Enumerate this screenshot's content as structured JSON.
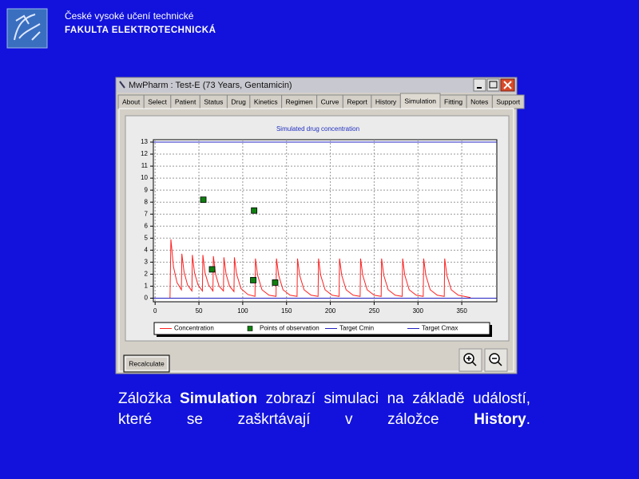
{
  "header": {
    "line1": "České vysoké učení technické",
    "line2": "FAKULTA ELEKTROTECHNICKÁ"
  },
  "window": {
    "title": "MwPharm : Test-E (73 Years, Gentamicin)",
    "tabs": [
      "About",
      "Select",
      "Patient",
      "Status",
      "Drug",
      "Kinetics",
      "Regimen",
      "Curve",
      "Report",
      "History",
      "Simulation",
      "Fitting",
      "Notes",
      "Support"
    ],
    "active_tab": 10,
    "button": "Recalculate"
  },
  "chart_data": {
    "type": "line",
    "title": "Simulated drug concentration",
    "xlim": [
      -2,
      390
    ],
    "ylim": [
      -0.3,
      13.2
    ],
    "xticks": [
      0,
      50,
      100,
      150,
      200,
      250,
      300,
      350
    ],
    "yticks": [
      0,
      1,
      2,
      3,
      4,
      5,
      6,
      7,
      8,
      9,
      10,
      11,
      12,
      13
    ],
    "grid": true,
    "legend": "bottom",
    "series": [
      {
        "name": "Concentration",
        "color": "#ff2020",
        "style": "line",
        "x": [
          17,
          18,
          21,
          25,
          30,
          30.5,
          33,
          37,
          42,
          42.5,
          45,
          49,
          54,
          54.5,
          57,
          61,
          66,
          66.5,
          69,
          73,
          78,
          78.5,
          81,
          85,
          90,
          90.5,
          93,
          98,
          106,
          114,
          114.5,
          117,
          122,
          130,
          138,
          138.5,
          141,
          146,
          154,
          162,
          162.5,
          165,
          170,
          178,
          186,
          186.5,
          189,
          194,
          202,
          210,
          210.5,
          213,
          218,
          226,
          234,
          234.5,
          237,
          242,
          250,
          258,
          258.5,
          261,
          266,
          274,
          282,
          282.5,
          285,
          290,
          298,
          306,
          306.5,
          309,
          314,
          322,
          330,
          330.5,
          333,
          338,
          346,
          360
        ],
        "values": [
          0,
          4.9,
          2.6,
          1.3,
          0.7,
          3.7,
          2.2,
          1.1,
          0.6,
          3.6,
          2.1,
          1.1,
          0.6,
          3.6,
          2.1,
          1.1,
          0.6,
          3.5,
          2.0,
          1.0,
          0.6,
          3.4,
          2.0,
          1.0,
          0.55,
          3.4,
          2.0,
          0.8,
          0.3,
          0.15,
          3.3,
          1.9,
          0.7,
          0.25,
          0.15,
          3.3,
          1.9,
          0.7,
          0.25,
          0.15,
          3.3,
          1.9,
          0.7,
          0.25,
          0.15,
          3.3,
          1.9,
          0.7,
          0.25,
          0.15,
          3.3,
          1.9,
          0.7,
          0.25,
          0.15,
          3.3,
          1.9,
          0.7,
          0.25,
          0.15,
          3.3,
          1.9,
          0.7,
          0.25,
          0.15,
          3.3,
          1.9,
          0.7,
          0.25,
          0.15,
          3.3,
          1.9,
          0.7,
          0.25,
          0.15,
          3.3,
          1.9,
          0.7,
          0.25,
          0.05
        ]
      },
      {
        "name": "Points of observation",
        "color": "#108010",
        "style": "marker",
        "x": [
          55,
          65,
          113,
          112,
          137
        ],
        "values": [
          8.2,
          2.4,
          7.3,
          1.5,
          1.3
        ]
      },
      {
        "name": "Target Cmin",
        "color": "#2020c0",
        "style": "line",
        "x": [
          -2,
          390
        ],
        "values": [
          0,
          0
        ]
      },
      {
        "name": "Target Cmax",
        "color": "#2020c0",
        "style": "line",
        "x": [
          -2,
          390
        ],
        "values": [
          13,
          13
        ]
      }
    ]
  },
  "caption": {
    "parts": [
      {
        "text": "Záložka ",
        "bold": false
      },
      {
        "text": "Simulation",
        "bold": true
      },
      {
        "text": " zobrazí simulaci na základě událostí, které se zaškrtávají v záložce ",
        "bold": false
      },
      {
        "text": "History",
        "bold": true
      },
      {
        "text": ".",
        "bold": false
      }
    ]
  }
}
